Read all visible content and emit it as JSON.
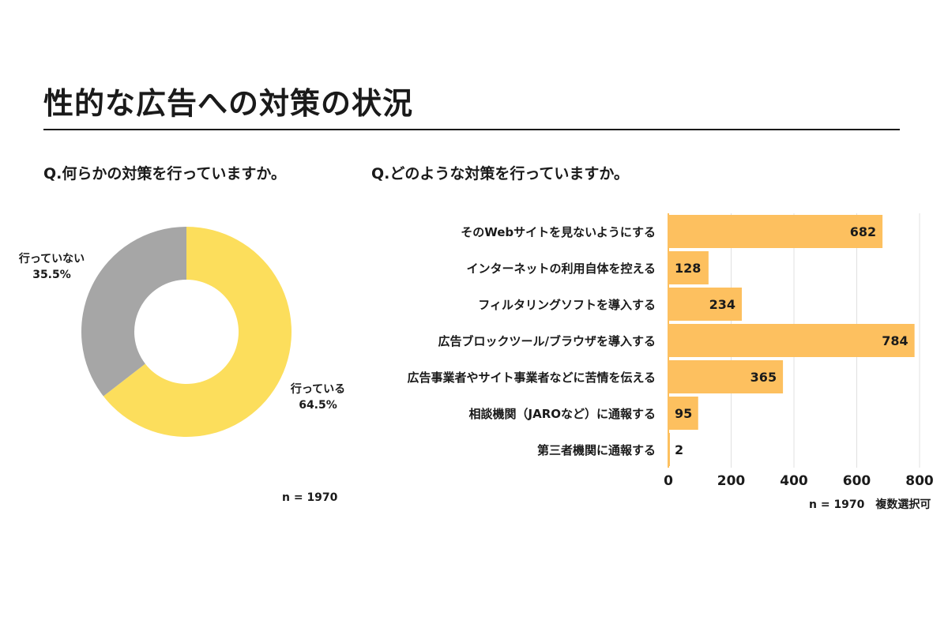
{
  "title": "性的な広告への対策の状況",
  "left": {
    "question": "Q.何らかの対策を行っていますか。",
    "note": "n = 1970"
  },
  "right": {
    "question": "Q.どのような対策を行っていますか。",
    "note": "n = 1970　複数選択可"
  },
  "colors": {
    "pie_yes": "#FCDE5C",
    "pie_no": "#A6A6A6",
    "bar": "#FDC05F",
    "grid": "#E0E0E0",
    "axis": "#FDC05F"
  },
  "chart_data": [
    {
      "type": "pie",
      "donut": true,
      "slices": [
        {
          "label": "行っている",
          "percent": 64.5,
          "percent_label": "64.5%"
        },
        {
          "label": "行っていない",
          "percent": 35.5,
          "percent_label": "35.5%"
        }
      ]
    },
    {
      "type": "bar",
      "orientation": "horizontal",
      "categories": [
        "そのWebサイトを見ないようにする",
        "インターネットの利用自体を控える",
        "フィルタリングソフトを導入する",
        "広告ブロックツール/ブラウザを導入する",
        "広告事業者やサイト事業者などに苦情を伝える",
        "相談機関（JAROなど）に通報する",
        "第三者機関に通報する"
      ],
      "values": [
        682,
        128,
        234,
        784,
        365,
        95,
        2
      ],
      "xlim": [
        0,
        800
      ],
      "xticks": [
        0,
        200,
        400,
        600,
        800
      ],
      "grid": true
    }
  ]
}
